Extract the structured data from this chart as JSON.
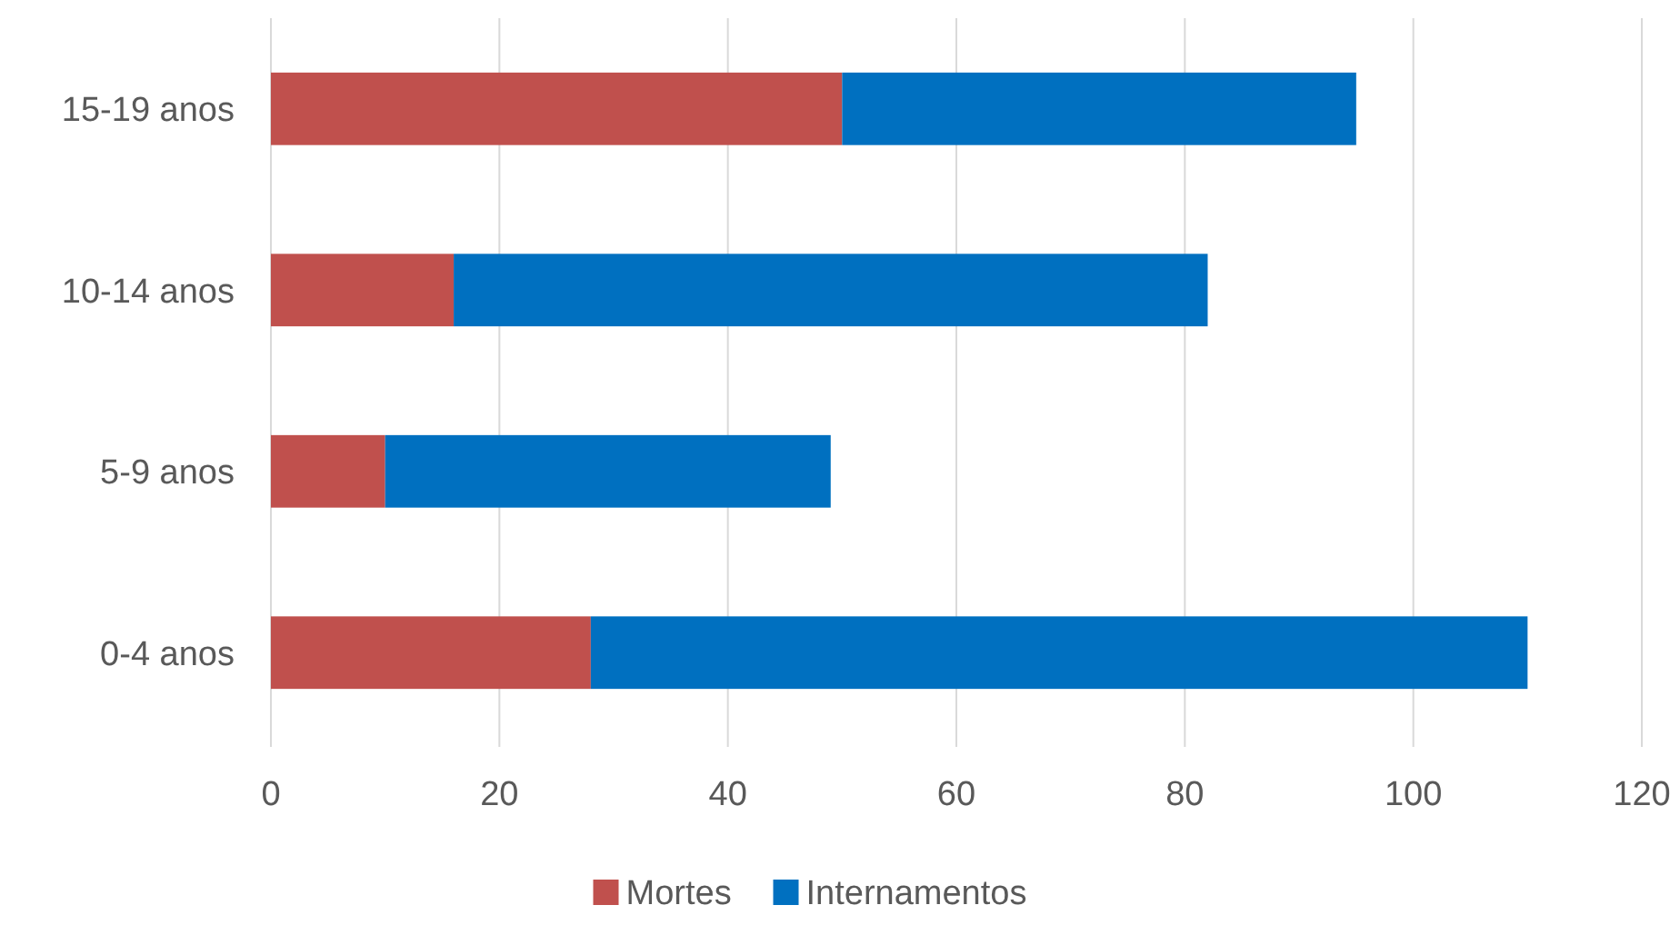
{
  "chart_data": {
    "type": "bar",
    "orientation": "horizontal",
    "stacked": true,
    "categories": [
      "15-19 anos",
      "10-14 anos",
      "5-9 anos",
      "0-4 anos"
    ],
    "series": [
      {
        "name": "Mortes",
        "color": "#c0504d",
        "values": [
          50,
          16,
          10,
          28
        ]
      },
      {
        "name": "Internamentos",
        "color": "#0070c0",
        "values": [
          45,
          66,
          39,
          82
        ]
      }
    ],
    "xlim": [
      0,
      120
    ],
    "xticks": [
      0,
      20,
      40,
      60,
      80,
      100,
      120
    ],
    "grid": "x",
    "legend": "bottom"
  }
}
